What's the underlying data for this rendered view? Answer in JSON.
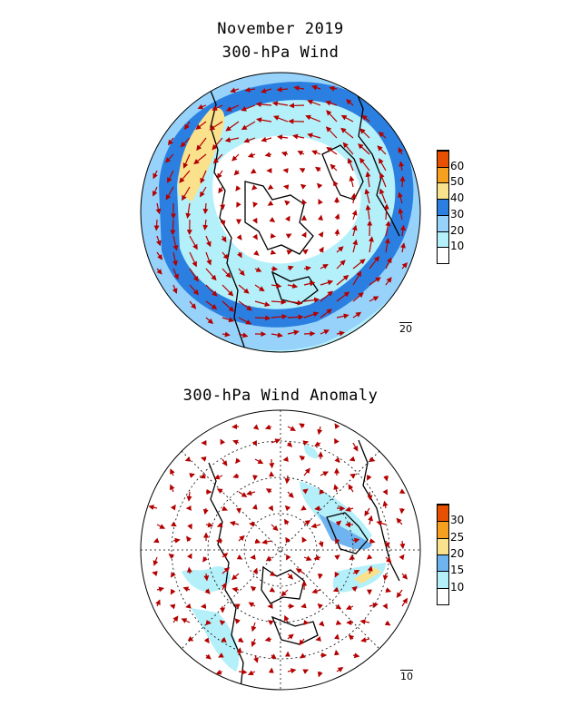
{
  "titles": {
    "month": "November 2019",
    "top": "300-hPa Wind",
    "bottom": "300-hPa Wind Anomaly"
  },
  "top_panel": {
    "colorbar_labels": [
      "10",
      "20",
      "30",
      "40",
      "50",
      "60"
    ],
    "colorbar_colors": [
      "#ffffff",
      "#b4f0fa",
      "#96d2fa",
      "#2a7fe0",
      "#fae18c",
      "#f5a01e",
      "#e65000"
    ],
    "reference_vector": "20"
  },
  "bottom_panel": {
    "colorbar_labels": [
      "10",
      "15",
      "20",
      "25",
      "30"
    ],
    "colorbar_colors": [
      "#ffffff",
      "#b4f0fa",
      "#6eb4f0",
      "#fae18c",
      "#f5a01e",
      "#e65000"
    ],
    "reference_vector": "10"
  },
  "colors": {
    "vector": "#b40000",
    "coast": "#000000"
  }
}
